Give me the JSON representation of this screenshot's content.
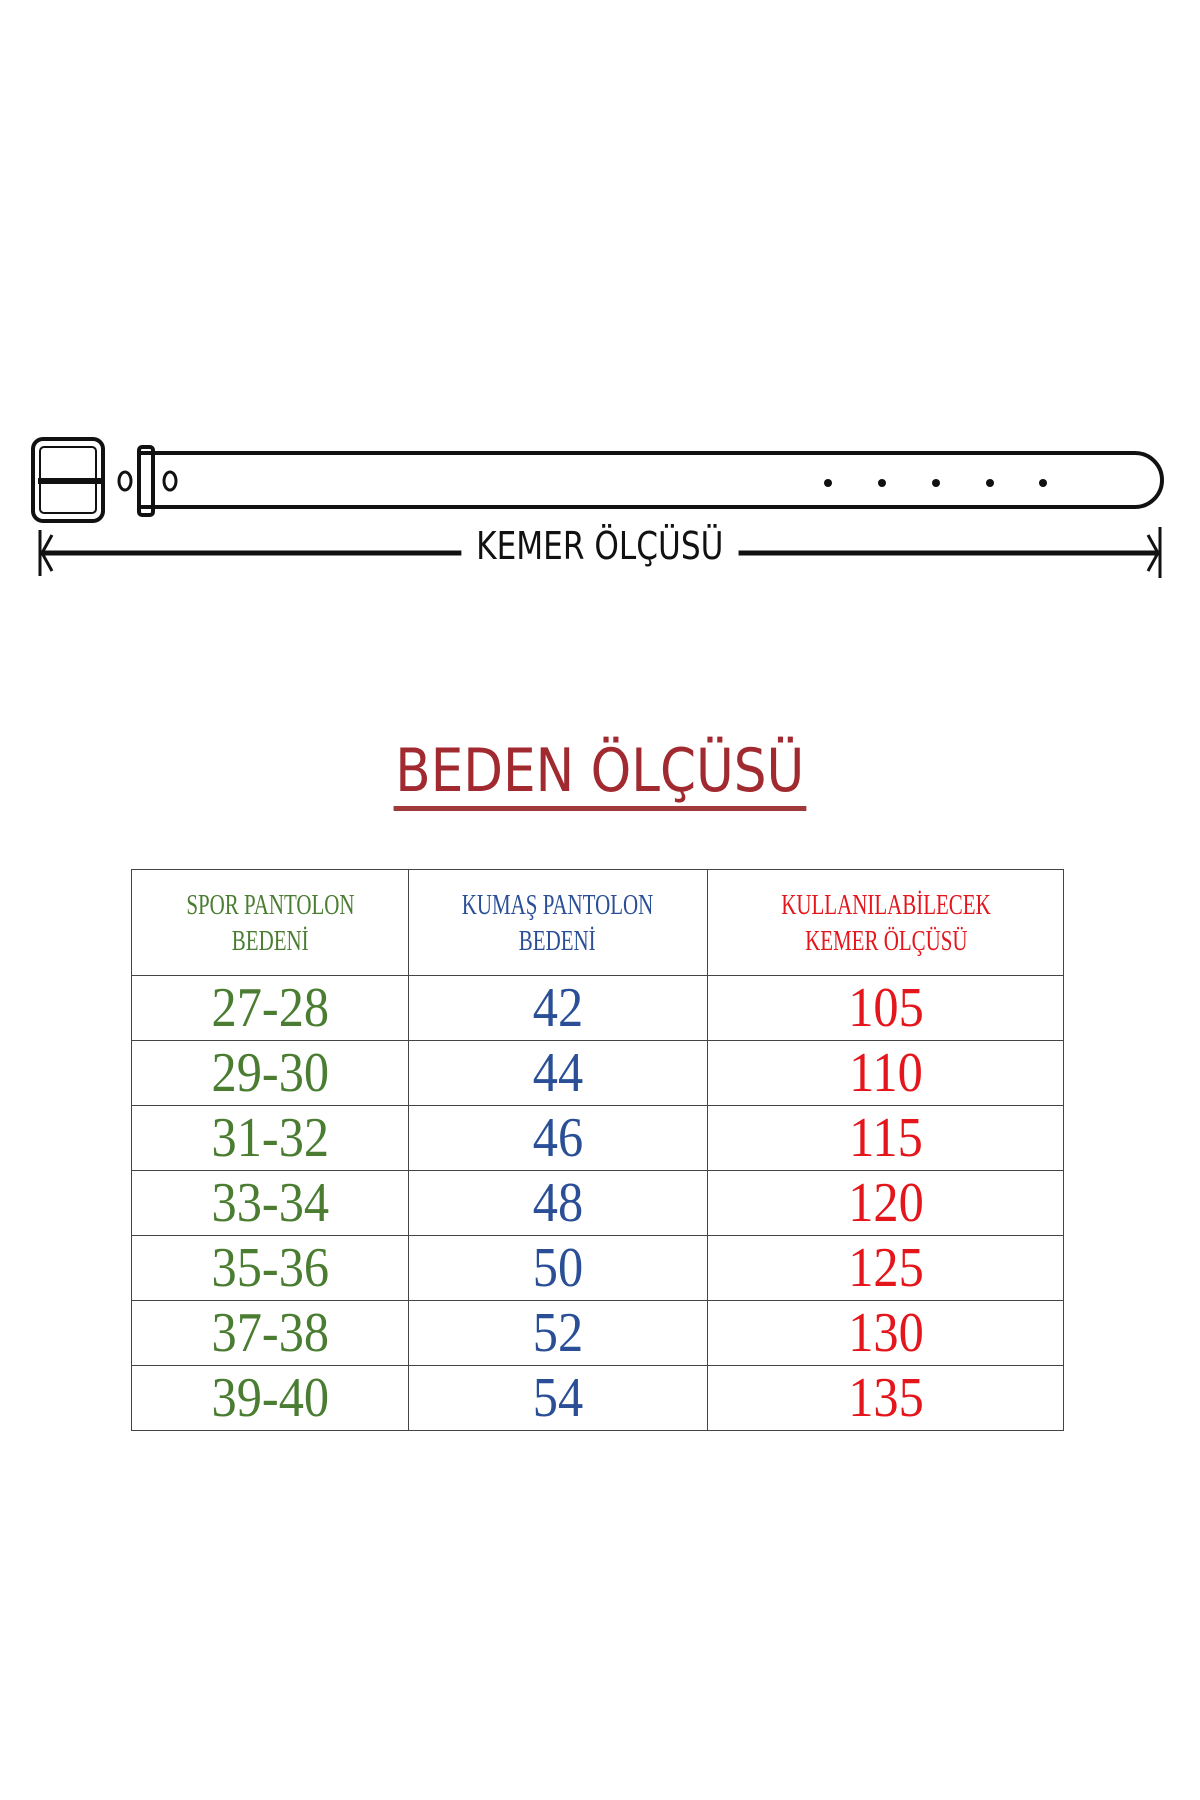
{
  "belt_diagram": {
    "label": "KEMER ÖLÇÜSÜ"
  },
  "title": "BEDEN ÖLÇÜSÜ",
  "table": {
    "headers": [
      [
        "SPOR PANTOLON",
        "BEDENİ"
      ],
      [
        "KUMAŞ PANTOLON",
        "BEDENİ"
      ],
      [
        "KULLANILABİLECEK",
        "KEMER ÖLÇÜSÜ"
      ]
    ],
    "rows": [
      [
        "27-28",
        "42",
        "105"
      ],
      [
        "29-30",
        "44",
        "110"
      ],
      [
        "31-32",
        "46",
        "115"
      ],
      [
        "33-34",
        "48",
        "120"
      ],
      [
        "35-36",
        "50",
        "125"
      ],
      [
        "37-38",
        "52",
        "130"
      ],
      [
        "39-40",
        "54",
        "135"
      ]
    ],
    "colors": {
      "col1": "#4a7d32",
      "col2": "#2a4f96",
      "col3": "#e4151b",
      "title": "#a02a2f"
    }
  }
}
